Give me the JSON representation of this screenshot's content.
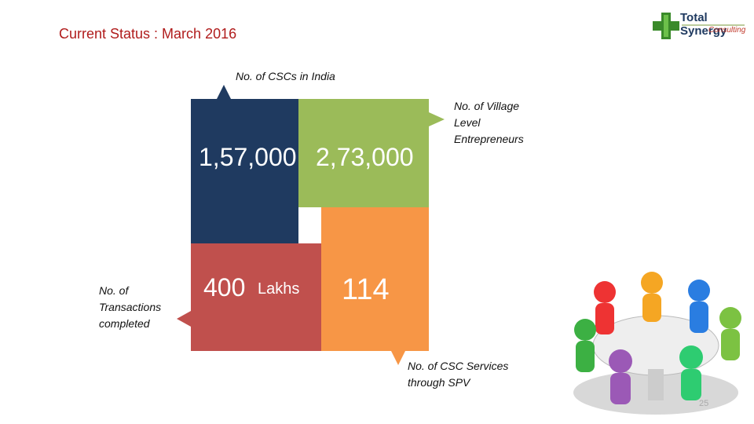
{
  "header": {
    "title": "Current Status : March 2016",
    "logo": {
      "name": "Total Synergy",
      "tagline": "Consulting"
    }
  },
  "tiles": [
    {
      "value": "1,57,000",
      "label": "No. of CSCs in India"
    },
    {
      "value": "2,73,000",
      "label": "No. of Village Level Entrepreneurs"
    },
    {
      "value": "400",
      "unit": "Lakhs",
      "label": "No. of Transactions completed"
    },
    {
      "value": "114",
      "label": "No. of CSC Services through SPV"
    }
  ],
  "page_number": "25"
}
